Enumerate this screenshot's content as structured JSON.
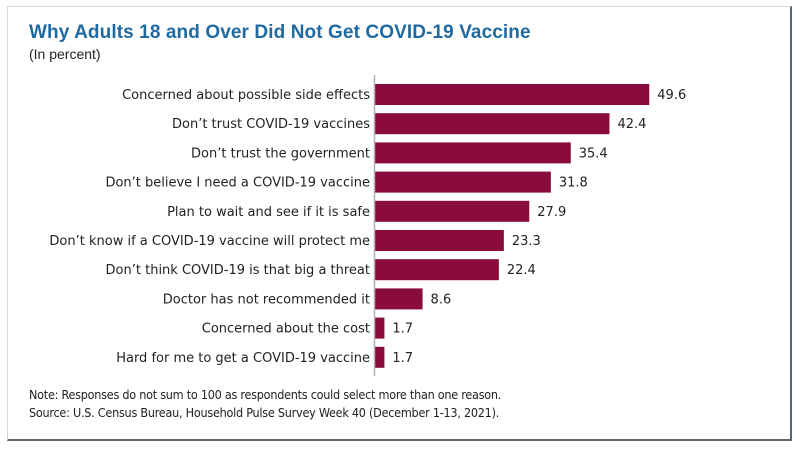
{
  "chart_data": {
    "type": "bar",
    "orientation": "horizontal",
    "title": "Why Adults 18 and Over Did Not Get COVID-19 Vaccine",
    "subtitle": "(In percent)",
    "categories": [
      "Concerned about possible side effects",
      "Don’t trust COVID-19 vaccines",
      "Don’t trust the government",
      "Don’t believe I need a COVID-19 vaccine",
      "Plan to wait and see if it is safe",
      "Don’t know if a COVID-19 vaccine will protect me",
      "Don’t think COVID-19 is that big a threat",
      "Doctor has not recommended it",
      "Concerned about the cost",
      "Hard for me to get a COVID-19 vaccine"
    ],
    "values": [
      49.6,
      42.4,
      35.4,
      31.8,
      27.9,
      23.3,
      22.4,
      8.6,
      1.7,
      1.7
    ],
    "value_labels": [
      "49.6",
      "42.4",
      "35.4",
      "31.8",
      "27.9",
      "23.3",
      "22.4",
      "8.6",
      "1.7",
      "1.7"
    ],
    "xlabel": "",
    "ylabel": "",
    "xlim": [
      0,
      50
    ],
    "grid": false,
    "legend": "none",
    "bar_color": "#8a0c3c",
    "title_color": "#1f6aa1"
  },
  "notes": {
    "note": "Note: Responses do not sum to 100 as respondents could select more than one reason.",
    "source": "Source: U.S. Census Bureau, Household Pulse Survey Week 40 (December 1-13, 2021)."
  }
}
